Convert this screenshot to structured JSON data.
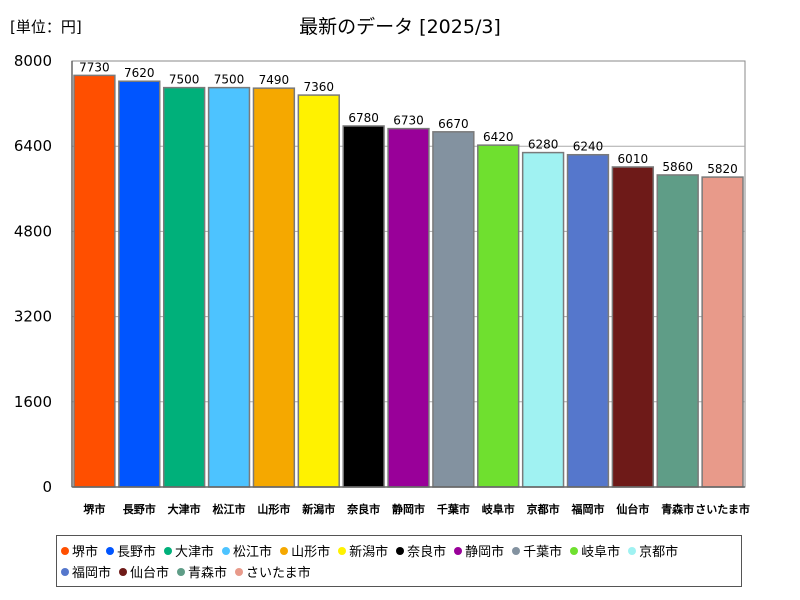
{
  "unit_label": "[単位：円]",
  "chart_data": {
    "type": "bar",
    "title": "最新のデータ [2025/3]",
    "ylim": [
      0,
      8000
    ],
    "yticks": [
      0,
      1600,
      3200,
      4800,
      6400,
      8000
    ],
    "categories": [
      "堺市",
      "長野市",
      "大津市",
      "松江市",
      "山形市",
      "新潟市",
      "奈良市",
      "静岡市",
      "千葉市",
      "岐阜市",
      "京都市",
      "福岡市",
      "仙台市",
      "青森市",
      "さいたま市"
    ],
    "values": [
      7730,
      7620,
      7500,
      7500,
      7490,
      7360,
      6780,
      6730,
      6670,
      6420,
      6280,
      6240,
      6010,
      5860,
      5820
    ],
    "colors": [
      "#ff4f00",
      "#0055ff",
      "#00b07a",
      "#4dc3ff",
      "#f5a800",
      "#fff200",
      "#000000",
      "#990099",
      "#8392a0",
      "#6fe02f",
      "#a0f2f2",
      "#5577cc",
      "#6e1a18",
      "#5f9d87",
      "#e89a8a"
    ],
    "grid": true,
    "legend": "bottom"
  }
}
